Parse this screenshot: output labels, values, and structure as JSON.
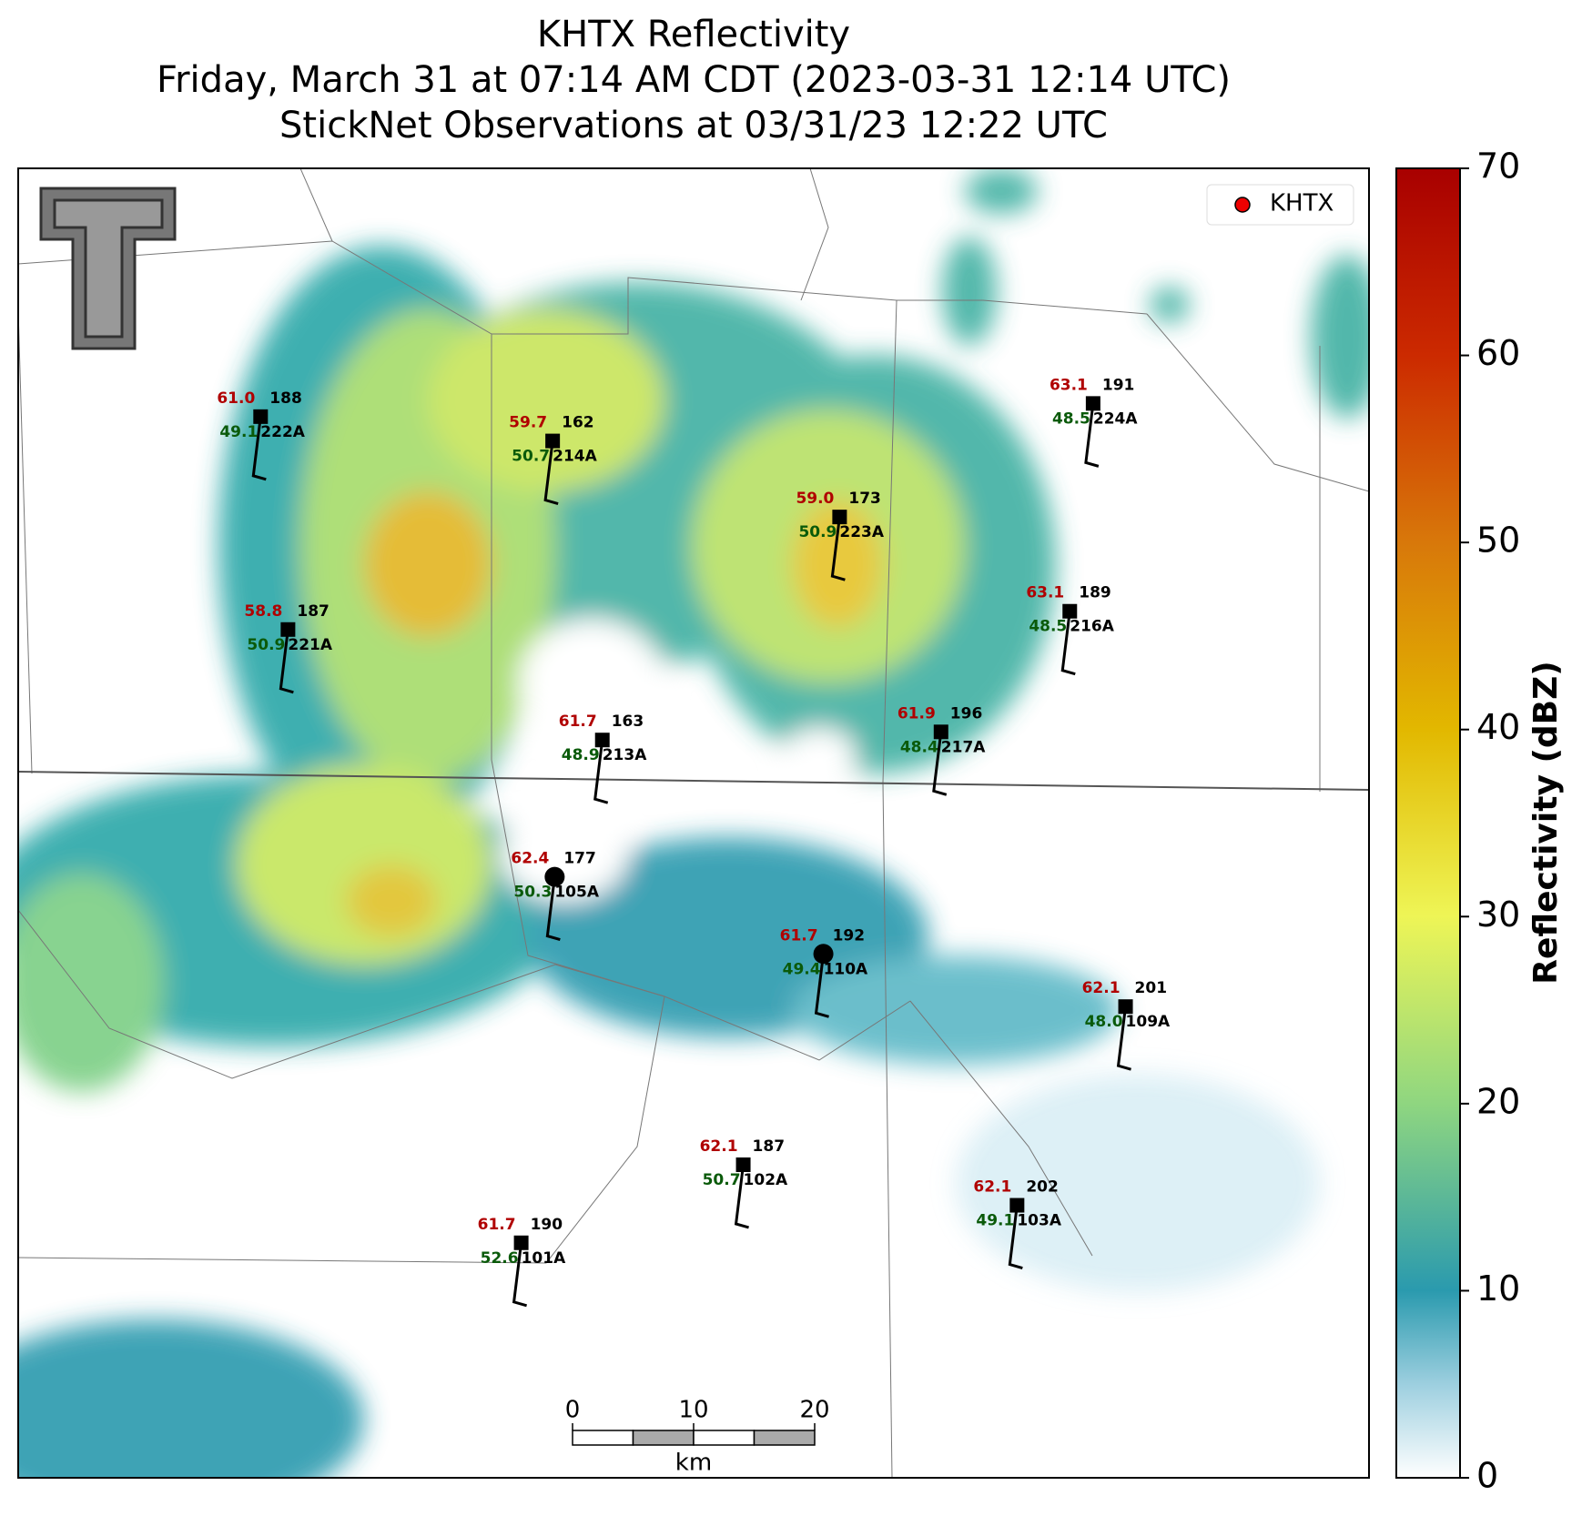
{
  "title_lines": [
    "KHTX Reflectivity",
    "Friday, March 31 at 07:14 AM CDT (2023-03-31 12:14 UTC)",
    "StickNet Observations at 03/31/23 12:22 UTC"
  ],
  "legend": {
    "label": "KHTX"
  },
  "stations": [
    {
      "id": "222A",
      "temp": 61.0,
      "dew": 49.1,
      "value": 188
    },
    {
      "id": "214A",
      "temp": 59.7,
      "dew": 50.7,
      "value": 162
    },
    {
      "id": "223A",
      "temp": 59.0,
      "dew": 50.9,
      "value": 173
    },
    {
      "id": "224A",
      "temp": 63.1,
      "dew": 48.5,
      "value": 191
    },
    {
      "id": "221A",
      "temp": 58.8,
      "dew": 50.9,
      "value": 187
    },
    {
      "id": "216A",
      "temp": 63.1,
      "dew": 48.5,
      "value": 189
    },
    {
      "id": "213A",
      "temp": 61.7,
      "dew": 48.9,
      "value": 163
    },
    {
      "id": "217A",
      "temp": 61.9,
      "dew": 48.4,
      "value": 196
    },
    {
      "id": "105A",
      "temp": 62.4,
      "dew": 50.3,
      "value": 177
    },
    {
      "id": "110A",
      "temp": 61.7,
      "dew": 49.4,
      "value": 192
    },
    {
      "id": "109A",
      "temp": 62.1,
      "dew": 48.0,
      "value": 201
    },
    {
      "id": "102A",
      "temp": 62.1,
      "dew": 50.7,
      "value": 187
    },
    {
      "id": "103A",
      "temp": 62.1,
      "dew": 49.1,
      "value": 202
    },
    {
      "id": "101A",
      "temp": 61.7,
      "dew": 52.6,
      "value": 190
    }
  ],
  "colorbar": {
    "label": "Reflectivity (dBZ)",
    "lim": [
      0,
      70
    ],
    "ticks": [
      0,
      10,
      20,
      30,
      40,
      50,
      60,
      70
    ]
  },
  "scale_bar": {
    "ticks": [
      0,
      10,
      20
    ],
    "unit": "km"
  }
}
